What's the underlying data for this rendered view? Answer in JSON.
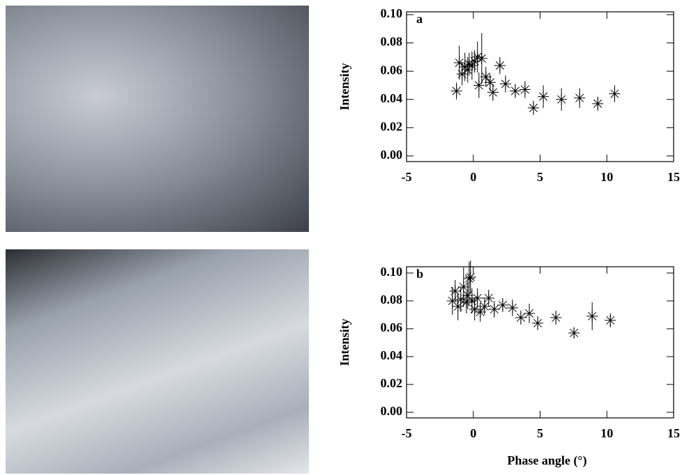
{
  "chart_data": [
    {
      "type": "scatter",
      "label": "a",
      "ylabel": "Intensity",
      "color": "#000000",
      "x": [
        -1.26,
        -1.05,
        -0.84,
        -0.63,
        -0.42,
        -0.31,
        -0.1,
        0.1,
        0.31,
        0.42,
        0.63,
        0.94,
        1.26,
        1.47,
        1.99,
        2.41,
        3.14,
        3.87,
        4.5,
        5.24,
        6.6,
        7.96,
        9.32,
        10.58
      ],
      "values": [
        0.046,
        0.066,
        0.058,
        0.063,
        0.061,
        0.065,
        0.064,
        0.067,
        0.07,
        0.05,
        0.069,
        0.056,
        0.052,
        0.045,
        0.064,
        0.051,
        0.046,
        0.047,
        0.034,
        0.042,
        0.04,
        0.041,
        0.037,
        0.044
      ],
      "errors": [
        0.006,
        0.012,
        0.008,
        0.01,
        0.009,
        0.008,
        0.01,
        0.008,
        0.011,
        0.009,
        0.018,
        0.007,
        0.006,
        0.006,
        0.006,
        0.006,
        0.005,
        0.006,
        0.005,
        0.008,
        0.008,
        0.007,
        0.005,
        0.006
      ],
      "xlim": [
        -5,
        15
      ],
      "ylim": [
        -0.004,
        0.102
      ],
      "xticks": [
        -5,
        0,
        5,
        10,
        15
      ],
      "yticks": [
        {
          "value": 0,
          "label": "0.00"
        },
        {
          "value": 0.02,
          "label": "0.02"
        },
        {
          "value": 0.04,
          "label": "0.04"
        },
        {
          "value": 0.06,
          "label": "0.06"
        },
        {
          "value": 0.08,
          "label": "0.08"
        },
        {
          "value": 0.1,
          "label": "0.10"
        }
      ]
    },
    {
      "type": "scatter",
      "label": "b",
      "ylabel": "Intensity",
      "xlabel": "Phase angle (°)",
      "color": "#000000",
      "x": [
        -1.57,
        -1.36,
        -1.15,
        -0.94,
        -0.73,
        -0.52,
        -0.42,
        -0.31,
        -0.21,
        -0.1,
        0.1,
        0.31,
        0.52,
        0.84,
        1.15,
        1.57,
        2.2,
        2.93,
        3.56,
        4.19,
        4.82,
        6.18,
        7.54,
        8.9,
        10.26
      ],
      "values": [
        0.08,
        0.087,
        0.076,
        0.081,
        0.09,
        0.079,
        0.084,
        0.096,
        0.097,
        0.08,
        0.074,
        0.082,
        0.072,
        0.076,
        0.082,
        0.074,
        0.077,
        0.075,
        0.068,
        0.071,
        0.064,
        0.068,
        0.057,
        0.069,
        0.066
      ],
      "errors": [
        0.01,
        0.008,
        0.01,
        0.009,
        0.014,
        0.008,
        0.01,
        0.012,
        0.012,
        0.009,
        0.008,
        0.007,
        0.007,
        0.006,
        0.006,
        0.006,
        0.005,
        0.006,
        0.005,
        0.007,
        0.005,
        0.005,
        0.004,
        0.01,
        0.005
      ],
      "xlim": [
        -5,
        15
      ],
      "ylim": [
        -0.004,
        0.1045
      ],
      "xticks": [
        -5,
        0,
        5,
        10,
        15
      ],
      "yticks": [
        {
          "value": 0,
          "label": "0.00"
        },
        {
          "value": 0.02,
          "label": "0.02"
        },
        {
          "value": 0.04,
          "label": "0.04"
        },
        {
          "value": 0.06,
          "label": "0.06"
        },
        {
          "value": 0.08,
          "label": "0.08"
        },
        {
          "value": 0.1,
          "label": "0.10"
        }
      ]
    }
  ]
}
